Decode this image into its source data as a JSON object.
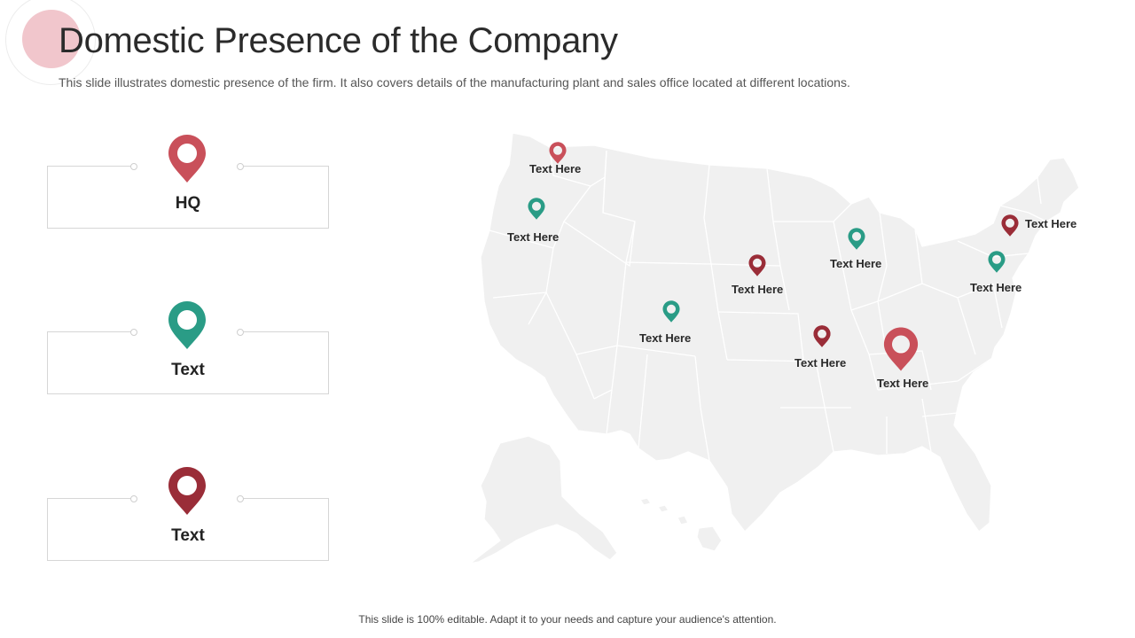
{
  "header": {
    "title": "Domestic Presence of the Company",
    "subtitle": "This slide illustrates domestic presence of the firm. It also covers details of the manufacturing plant and sales office located at different locations."
  },
  "colors": {
    "hq": "#c9505a",
    "teal": "#2a9c86",
    "maroon": "#9a2d38",
    "map_fill": "#f0f0f0",
    "accent_circle": "#f1c6cc"
  },
  "legend": [
    {
      "label": "HQ",
      "color": "hq"
    },
    {
      "label": "Text",
      "color": "teal"
    },
    {
      "label": "Text",
      "color": "maroon"
    }
  ],
  "map": {
    "markers": [
      {
        "label": "Text Here",
        "color": "hq"
      },
      {
        "label": "Text Here",
        "color": "teal"
      },
      {
        "label": "Text Here",
        "color": "maroon"
      },
      {
        "label": "Text Here",
        "color": "teal"
      },
      {
        "label": "Text Here",
        "color": "teal"
      },
      {
        "label": "Text Here",
        "color": "maroon"
      },
      {
        "label": "Text Here",
        "color": "maroon"
      },
      {
        "label": "Text Here",
        "color": "hq"
      },
      {
        "label": "Text Here",
        "color": "maroon"
      },
      {
        "label": "Text Here",
        "color": "teal"
      }
    ]
  },
  "footer": {
    "note": "This slide is 100% editable. Adapt it to your needs and capture your audience's attention."
  }
}
